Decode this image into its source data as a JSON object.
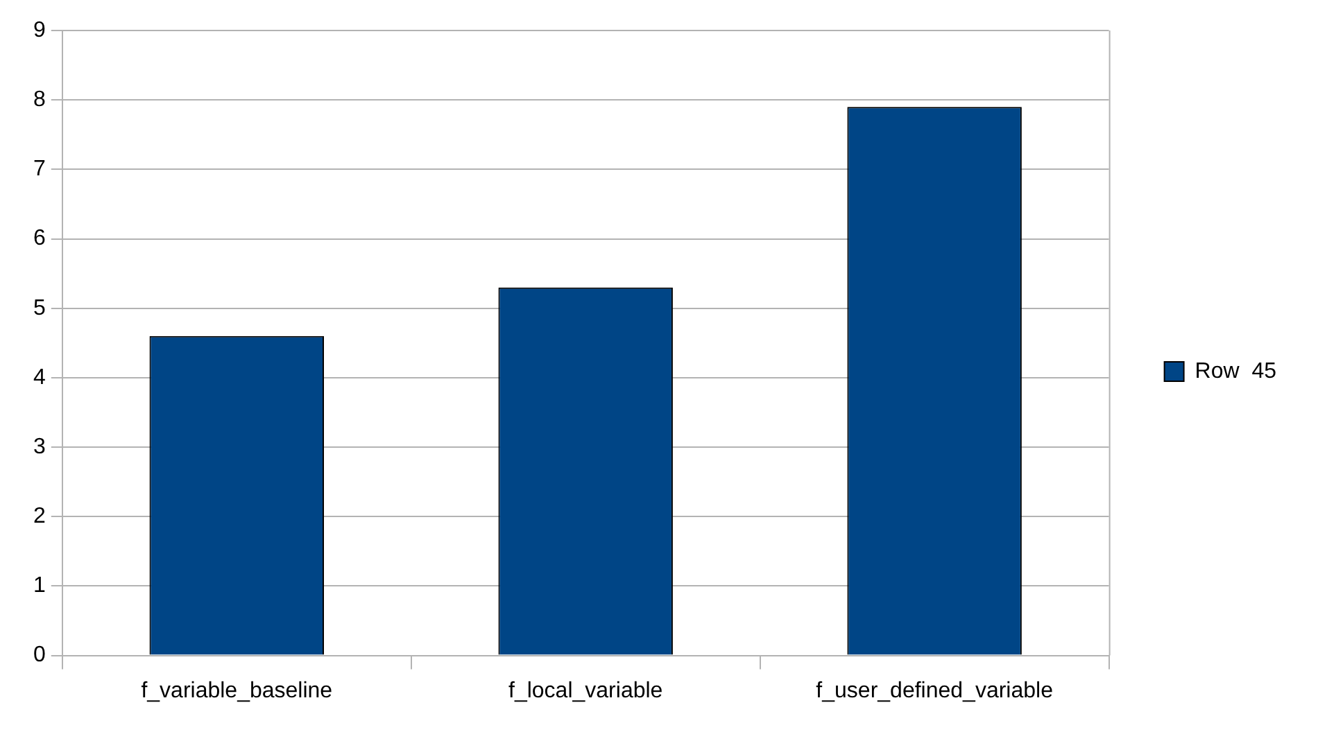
{
  "chart_data": {
    "type": "bar",
    "categories": [
      "f_variable_baseline",
      "f_local_variable",
      "f_user_defined_variable"
    ],
    "series": [
      {
        "name": "Row  45",
        "color": "#004586",
        "values": [
          4.6,
          5.3,
          7.9
        ]
      }
    ],
    "ylim": [
      0,
      9
    ],
    "yticks": [
      0,
      1,
      2,
      3,
      4,
      5,
      6,
      7,
      8,
      9
    ],
    "grid": "y",
    "legend": "right"
  }
}
